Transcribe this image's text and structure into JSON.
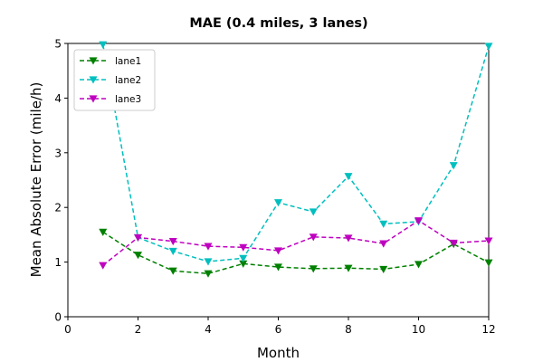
{
  "chart_data": {
    "type": "line",
    "title": "MAE (0.4 miles, 3 lanes)",
    "xlabel": "Month",
    "ylabel": "Mean Absolute Error (mile/h)",
    "xlim": [
      0,
      12
    ],
    "ylim": [
      0,
      5
    ],
    "xticks": [
      0,
      2,
      4,
      6,
      8,
      10,
      12
    ],
    "yticks": [
      0,
      1,
      2,
      3,
      4,
      5
    ],
    "grid": false,
    "legend_position": "top-left",
    "marker": "triangle-down",
    "line_style": "dashed",
    "x": [
      1,
      2,
      3,
      4,
      5,
      6,
      7,
      8,
      9,
      10,
      11,
      12
    ],
    "series": [
      {
        "name": "lane1",
        "color": "#008000",
        "values": [
          1.55,
          1.13,
          0.84,
          0.79,
          0.97,
          0.91,
          0.88,
          0.89,
          0.87,
          0.96,
          1.33,
          0.99
        ]
      },
      {
        "name": "lane2",
        "color": "#00bfbf",
        "values": [
          4.98,
          1.45,
          1.2,
          1.01,
          1.07,
          2.09,
          1.92,
          2.57,
          1.7,
          1.74,
          2.77,
          4.95
        ]
      },
      {
        "name": "lane3",
        "color": "#bf00bf",
        "values": [
          0.94,
          1.45,
          1.38,
          1.29,
          1.27,
          1.21,
          1.46,
          1.44,
          1.34,
          1.76,
          1.35,
          1.39
        ]
      }
    ]
  }
}
